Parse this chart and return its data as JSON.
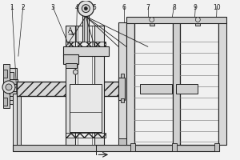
{
  "labels": [
    "1",
    "2",
    "3",
    "4",
    "5",
    "6",
    "7",
    "8",
    "9",
    "10"
  ],
  "lc": "#555555",
  "dc": "#222222",
  "fc_light": "#e8e8e8",
  "fc_mid": "#cccccc",
  "fc_dark": "#aaaaaa",
  "fc_white": "#f8f8f8",
  "bg": "#f2f2f2"
}
